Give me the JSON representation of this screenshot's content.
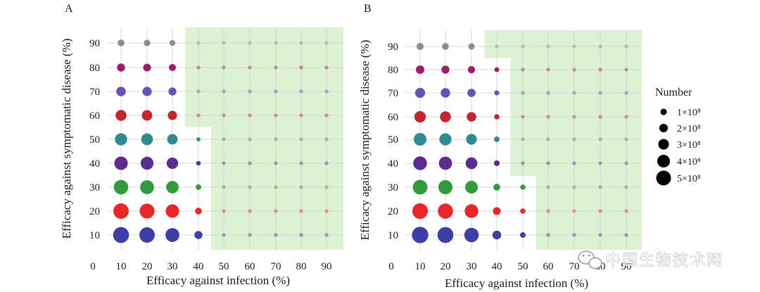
{
  "chart_data": [
    {
      "type": "scatter",
      "panel_label": "A",
      "xlabel": "Efficacy against infection (%)",
      "ylabel": "Efficacy against symptomatic disease (%)",
      "x_ticks": [
        0,
        10,
        20,
        30,
        40,
        50,
        60,
        70,
        80,
        90
      ],
      "y_ticks": [
        10,
        20,
        30,
        40,
        50,
        60,
        70,
        80,
        90
      ],
      "xlim": [
        0,
        95
      ],
      "ylim": [
        0,
        97
      ],
      "categories_x": [
        10,
        20,
        30,
        40,
        50,
        60,
        70,
        80,
        90
      ],
      "categories_y": [
        10,
        20,
        30,
        40,
        50,
        60,
        70,
        80,
        90
      ],
      "shaded_region_bounds": [
        {
          "y_min": 0,
          "y_max": 55,
          "x_from": 45
        },
        {
          "y_min": 55,
          "y_max": 97,
          "x_from": 35
        }
      ],
      "point_values_1e8": {
        "10": [
          5.2,
          5.0,
          4.6,
          4.2,
          3.7,
          3.2,
          2.6,
          2.0,
          1.5
        ],
        "20": [
          5.0,
          4.8,
          4.4,
          4.0,
          3.5,
          3.0,
          2.5,
          1.9,
          1.4
        ],
        "30": [
          4.4,
          4.2,
          3.8,
          3.4,
          3.0,
          2.5,
          2.0,
          1.6,
          1.1
        ],
        "40": [
          2.0,
          1.5,
          1.0,
          0.6,
          0.4,
          0.3,
          0.3,
          0.3,
          0.3
        ],
        "50": [
          0.3,
          0.3,
          0.3,
          0.3,
          0.3,
          0.3,
          0.3,
          0.3,
          0.3
        ],
        "60": [
          0.3,
          0.3,
          0.3,
          0.3,
          0.3,
          0.3,
          0.3,
          0.3,
          0.3
        ],
        "70": [
          0.3,
          0.3,
          0.3,
          0.3,
          0.3,
          0.3,
          0.3,
          0.3,
          0.3
        ],
        "80": [
          0.3,
          0.3,
          0.3,
          0.3,
          0.3,
          0.3,
          0.3,
          0.3,
          0.3
        ],
        "90": [
          0.3,
          0.3,
          0.3,
          0.3,
          0.3,
          0.3,
          0.3,
          0.3,
          0.3
        ]
      }
    },
    {
      "type": "scatter",
      "panel_label": "B",
      "xlabel": "Efficacy against infection (%)",
      "ylabel": "Efficacy against symptomatic disease (%)",
      "x_ticks": [
        0,
        10,
        20,
        30,
        40,
        50,
        60,
        70,
        80,
        90
      ],
      "y_ticks": [
        10,
        20,
        30,
        40,
        50,
        60,
        70,
        80,
        90
      ],
      "xlim": [
        0,
        95
      ],
      "ylim": [
        0,
        97
      ],
      "categories_x": [
        10,
        20,
        30,
        40,
        50,
        60,
        70,
        80,
        90
      ],
      "categories_y": [
        10,
        20,
        30,
        40,
        50,
        60,
        70,
        80,
        90
      ],
      "shaded_region_bounds": [
        {
          "y_min": 0,
          "y_max": 25,
          "x_from": 55
        },
        {
          "y_min": 25,
          "y_max": 35,
          "x_from": 55
        },
        {
          "y_min": 35,
          "y_max": 85,
          "x_from": 45
        },
        {
          "y_min": 85,
          "y_max": 97,
          "x_from": 35
        }
      ],
      "point_values_1e8": {
        "10": [
          5.4,
          5.1,
          4.7,
          4.3,
          3.9,
          3.4,
          2.8,
          2.2,
          1.6
        ],
        "20": [
          5.2,
          4.9,
          4.5,
          4.1,
          3.7,
          3.2,
          2.6,
          2.0,
          1.5
        ],
        "30": [
          4.6,
          4.3,
          3.9,
          3.5,
          3.1,
          2.6,
          2.1,
          1.7,
          1.3
        ],
        "40": [
          2.3,
          1.9,
          1.5,
          1.1,
          1.0,
          0.9,
          0.8,
          0.7,
          0.3
        ],
        "50": [
          1.0,
          0.9,
          0.9,
          0.3,
          0.3,
          0.3,
          0.3,
          0.3,
          0.3
        ],
        "60": [
          0.3,
          0.3,
          0.3,
          0.3,
          0.3,
          0.3,
          0.3,
          0.3,
          0.3
        ],
        "70": [
          0.3,
          0.3,
          0.3,
          0.3,
          0.3,
          0.3,
          0.3,
          0.3,
          0.3
        ],
        "80": [
          0.3,
          0.3,
          0.3,
          0.3,
          0.3,
          0.3,
          0.3,
          0.3,
          0.3
        ],
        "90": [
          0.3,
          0.3,
          0.3,
          0.3,
          0.3,
          0.3,
          0.3,
          0.3,
          0.3
        ]
      }
    }
  ],
  "row_colors": {
    "10": "#3b3fa6",
    "20": "#e8272b",
    "30": "#2f9a3e",
    "40": "#5b2d91",
    "50": "#2e8b8f",
    "60": "#c1272d",
    "70": "#6a4fb5",
    "80": "#9b1d6b",
    "90": "#8c8c8c"
  },
  "shade_color": "#dcf2d2",
  "legend": {
    "title": "Number",
    "entries": [
      {
        "label": "1×10⁸",
        "value_1e8": 1
      },
      {
        "label": "2×10⁸",
        "value_1e8": 2
      },
      {
        "label": "3×10⁸",
        "value_1e8": 3
      },
      {
        "label": "4×10⁸",
        "value_1e8": 4
      },
      {
        "label": "5×10⁸",
        "value_1e8": 5
      }
    ]
  },
  "watermark": {
    "text": "中国生物技术网",
    "icon": "wechat-icon"
  }
}
